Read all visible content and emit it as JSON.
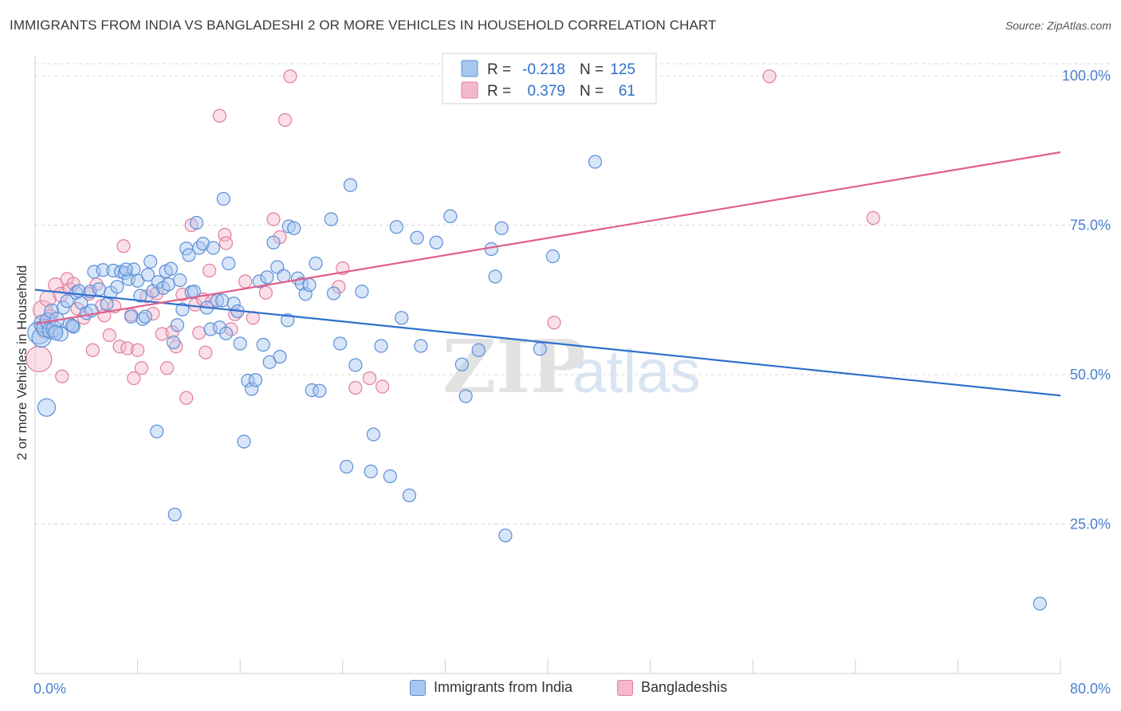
{
  "title": "IMMIGRANTS FROM INDIA VS BANGLADESHI 2 OR MORE VEHICLES IN HOUSEHOLD CORRELATION CHART",
  "source": "Source: ZipAtlas.com",
  "watermark": {
    "zip": "ZIP",
    "atlas": "atlas"
  },
  "colors": {
    "india_fill": "#a9c6ef",
    "india_stroke": "#5b8fd6",
    "india_line": "#2f6fcc",
    "bangla_fill": "#f4b8cb",
    "bangla_stroke": "#e07ea0",
    "bangla_line": "#e0608a",
    "tick_label": "#4a7fd0",
    "grid": "#d8d8d8"
  },
  "legend_stats": {
    "r_label": "R =",
    "n_label": "N =",
    "rows": [
      {
        "r": "-0.218",
        "n": "125"
      },
      {
        "r": "0.379",
        "n": "61"
      }
    ]
  },
  "chart_data": {
    "type": "scatter",
    "title": "IMMIGRANTS FROM INDIA VS BANGLADESHI 2 OR MORE VEHICLES IN HOUSEHOLD CORRELATION CHART",
    "xlabel": "",
    "ylabel": "2 or more Vehicles in Household",
    "xlim": [
      0,
      80
    ],
    "ylim": [
      0,
      102
    ],
    "x_tick_labels": [
      "0.0%",
      "80.0%"
    ],
    "y_ticks": [
      25,
      50,
      75,
      100
    ],
    "y_tick_labels": [
      "25.0%",
      "50.0%",
      "75.0%",
      "100.0%"
    ],
    "grid": true,
    "legend_position": "bottom",
    "series": [
      {
        "name": "Immigrants from India",
        "trend": {
          "x": [
            0,
            80
          ],
          "y": [
            64.2,
            46.5
          ]
        },
        "points": [
          [
            0.3,
            57.0,
            14
          ],
          [
            0.5,
            56.2,
            12
          ],
          [
            0.6,
            58.5,
            11
          ],
          [
            0.8,
            57.8,
            11
          ],
          [
            1.0,
            59.0,
            10
          ],
          [
            1.2,
            57.4,
            10
          ],
          [
            1.3,
            60.6,
            9
          ],
          [
            1.5,
            57.6,
            10
          ],
          [
            1.7,
            59.2,
            9
          ],
          [
            2.0,
            56.8,
            9
          ],
          [
            2.2,
            61.2,
            8
          ],
          [
            2.5,
            62.3,
            8
          ],
          [
            2.7,
            58.5,
            8
          ],
          [
            3.0,
            58.0,
            8
          ],
          [
            3.2,
            63.7,
            8
          ],
          [
            3.6,
            62.0,
            8
          ],
          [
            4.0,
            60.3,
            8
          ],
          [
            4.3,
            63.9,
            8
          ],
          [
            4.6,
            67.2,
            8
          ],
          [
            5.0,
            64.3,
            8
          ],
          [
            5.3,
            67.5,
            8
          ],
          [
            5.6,
            61.8,
            8
          ],
          [
            5.9,
            63.7,
            8
          ],
          [
            6.1,
            67.4,
            8
          ],
          [
            6.4,
            64.7,
            8
          ],
          [
            6.7,
            67.2,
            8
          ],
          [
            7.0,
            67.0,
            8
          ],
          [
            7.3,
            66.0,
            8
          ],
          [
            7.5,
            59.7,
            8
          ],
          [
            7.7,
            67.6,
            8
          ],
          [
            8.0,
            65.7,
            8
          ],
          [
            8.2,
            63.2,
            8
          ],
          [
            8.4,
            59.3,
            8
          ],
          [
            8.6,
            59.7,
            8
          ],
          [
            8.8,
            66.7,
            8
          ],
          [
            9.0,
            68.9,
            8
          ],
          [
            9.2,
            64.0,
            8
          ],
          [
            9.6,
            65.5,
            8
          ],
          [
            10.0,
            64.5,
            8
          ],
          [
            10.2,
            67.3,
            8
          ],
          [
            10.4,
            65.1,
            8
          ],
          [
            10.6,
            67.7,
            8
          ],
          [
            10.8,
            55.4,
            8
          ],
          [
            11.1,
            58.3,
            8
          ],
          [
            11.3,
            65.8,
            8
          ],
          [
            11.5,
            60.9,
            8
          ],
          [
            11.8,
            71.1,
            8
          ],
          [
            12.0,
            70.0,
            8
          ],
          [
            12.2,
            63.8,
            8
          ],
          [
            12.4,
            63.9,
            8
          ],
          [
            12.6,
            75.4,
            8
          ],
          [
            12.8,
            71.2,
            8
          ],
          [
            13.1,
            71.9,
            8
          ],
          [
            13.4,
            61.2,
            8
          ],
          [
            13.7,
            57.6,
            8
          ],
          [
            13.9,
            71.2,
            8
          ],
          [
            14.2,
            62.4,
            8
          ],
          [
            14.4,
            57.9,
            8
          ],
          [
            14.6,
            62.4,
            8
          ],
          [
            14.9,
            56.9,
            8
          ],
          [
            15.1,
            68.6,
            8
          ],
          [
            15.5,
            61.9,
            8
          ],
          [
            15.8,
            60.6,
            8
          ],
          [
            16.0,
            55.2,
            8
          ],
          [
            16.3,
            38.8,
            8
          ],
          [
            16.6,
            49.0,
            8
          ],
          [
            16.9,
            47.6,
            8
          ],
          [
            17.2,
            49.1,
            8
          ],
          [
            17.5,
            65.6,
            8
          ],
          [
            17.8,
            55.0,
            8
          ],
          [
            18.1,
            66.3,
            8
          ],
          [
            18.3,
            52.1,
            8
          ],
          [
            18.6,
            72.1,
            8
          ],
          [
            18.9,
            68.0,
            8
          ],
          [
            19.1,
            53.0,
            8
          ],
          [
            19.4,
            66.5,
            8
          ],
          [
            19.8,
            74.8,
            8
          ],
          [
            20.2,
            74.5,
            8
          ],
          [
            20.5,
            66.1,
            8
          ],
          [
            20.8,
            65.2,
            8
          ],
          [
            21.1,
            63.5,
            8
          ],
          [
            21.4,
            65.0,
            8
          ],
          [
            21.6,
            47.4,
            8
          ],
          [
            21.9,
            68.6,
            8
          ],
          [
            22.2,
            47.3,
            8
          ],
          [
            23.1,
            76.0,
            8
          ],
          [
            23.3,
            63.6,
            8
          ],
          [
            23.8,
            55.2,
            8
          ],
          [
            24.3,
            34.6,
            8
          ],
          [
            24.6,
            81.7,
            8
          ],
          [
            25.0,
            51.6,
            8
          ],
          [
            25.5,
            63.9,
            8
          ],
          [
            26.2,
            33.8,
            8
          ],
          [
            26.4,
            40.0,
            8
          ],
          [
            27.0,
            54.8,
            8
          ],
          [
            27.7,
            33.0,
            8
          ],
          [
            28.2,
            74.7,
            8
          ],
          [
            28.6,
            59.5,
            8
          ],
          [
            29.2,
            29.8,
            8
          ],
          [
            29.8,
            72.9,
            8
          ],
          [
            30.1,
            54.8,
            8
          ],
          [
            31.3,
            72.1,
            8
          ],
          [
            32.4,
            76.5,
            8
          ],
          [
            33.3,
            51.7,
            8
          ],
          [
            33.6,
            46.4,
            8
          ],
          [
            34.6,
            54.1,
            8
          ],
          [
            35.6,
            71.0,
            8
          ],
          [
            35.9,
            66.4,
            8
          ],
          [
            36.4,
            74.5,
            8
          ],
          [
            36.7,
            23.1,
            8
          ],
          [
            39.4,
            54.3,
            8
          ],
          [
            40.4,
            69.8,
            8
          ],
          [
            43.7,
            85.6,
            8
          ],
          [
            78.4,
            11.7,
            8
          ],
          [
            0.9,
            44.5,
            11
          ],
          [
            10.9,
            26.6,
            8
          ],
          [
            9.5,
            40.5,
            8
          ],
          [
            4.4,
            60.7,
            8
          ],
          [
            2.9,
            58.2,
            8
          ],
          [
            1.6,
            57.0,
            9
          ],
          [
            14.7,
            79.4,
            8
          ],
          [
            7.1,
            67.6,
            8
          ],
          [
            3.4,
            64.0,
            8
          ],
          [
            19.7,
            59.1,
            8
          ]
        ]
      },
      {
        "name": "Bangladeshis",
        "trend": {
          "x": [
            0,
            80
          ],
          "y": [
            58.5,
            87.2
          ]
        },
        "points": [
          [
            0.3,
            52.6,
            16
          ],
          [
            0.6,
            60.8,
            12
          ],
          [
            0.8,
            57.5,
            11
          ],
          [
            1.0,
            62.7,
            10
          ],
          [
            1.2,
            59.7,
            9
          ],
          [
            1.6,
            65.0,
            9
          ],
          [
            2.0,
            63.4,
            9
          ],
          [
            2.1,
            49.7,
            8
          ],
          [
            2.5,
            66.0,
            8
          ],
          [
            2.7,
            64.3,
            8
          ],
          [
            3.0,
            65.2,
            8
          ],
          [
            3.3,
            61.0,
            8
          ],
          [
            3.8,
            59.5,
            8
          ],
          [
            4.2,
            63.5,
            8
          ],
          [
            4.5,
            54.1,
            8
          ],
          [
            4.8,
            65.1,
            8
          ],
          [
            5.2,
            61.5,
            8
          ],
          [
            5.4,
            59.9,
            8
          ],
          [
            5.8,
            56.6,
            8
          ],
          [
            6.2,
            61.4,
            8
          ],
          [
            6.6,
            54.7,
            8
          ],
          [
            6.9,
            71.5,
            8
          ],
          [
            7.2,
            54.4,
            8
          ],
          [
            7.5,
            60.0,
            8
          ],
          [
            7.7,
            49.4,
            8
          ],
          [
            8.0,
            54.1,
            8
          ],
          [
            8.3,
            51.1,
            8
          ],
          [
            8.7,
            63.1,
            8
          ],
          [
            9.2,
            60.2,
            8
          ],
          [
            9.5,
            63.6,
            8
          ],
          [
            9.9,
            56.8,
            8
          ],
          [
            10.3,
            51.1,
            8
          ],
          [
            10.7,
            57.1,
            8
          ],
          [
            11.0,
            54.7,
            8
          ],
          [
            11.5,
            63.4,
            8
          ],
          [
            11.8,
            46.1,
            8
          ],
          [
            12.2,
            75.0,
            8
          ],
          [
            12.5,
            61.7,
            8
          ],
          [
            12.8,
            57.0,
            8
          ],
          [
            13.1,
            62.6,
            8
          ],
          [
            13.3,
            53.7,
            8
          ],
          [
            13.6,
            67.4,
            8
          ],
          [
            13.8,
            62.3,
            8
          ],
          [
            14.4,
            93.3,
            8
          ],
          [
            14.8,
            73.4,
            8
          ],
          [
            14.9,
            72.0,
            8
          ],
          [
            15.3,
            57.6,
            8
          ],
          [
            15.6,
            60.1,
            8
          ],
          [
            16.4,
            65.6,
            8
          ],
          [
            17.0,
            59.5,
            8
          ],
          [
            18.0,
            63.7,
            8
          ],
          [
            18.6,
            76.0,
            8
          ],
          [
            19.1,
            73.0,
            8
          ],
          [
            19.5,
            92.6,
            8
          ],
          [
            19.9,
            99.9,
            8
          ],
          [
            23.7,
            64.7,
            8
          ],
          [
            24.0,
            67.8,
            8
          ],
          [
            25.0,
            47.8,
            8
          ],
          [
            26.1,
            49.4,
            8
          ],
          [
            27.1,
            48.0,
            8
          ],
          [
            40.5,
            58.7,
            8
          ],
          [
            57.3,
            99.9,
            8
          ],
          [
            65.4,
            76.2,
            8
          ]
        ]
      }
    ]
  },
  "legend_bottom": [
    "Immigrants from India",
    "Bangladeshis"
  ]
}
